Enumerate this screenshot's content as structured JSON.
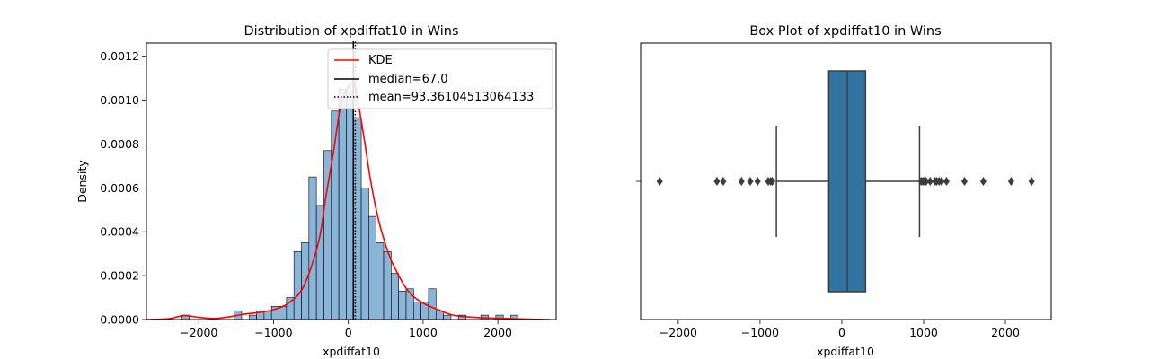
{
  "chart_data": [
    {
      "type": "histogram",
      "title": "Distribution of xpdiffat10 in Wins",
      "xlabel": "xpdiffat10",
      "ylabel": "Density",
      "xlim": [
        -2700,
        2780
      ],
      "ylim": [
        0,
        0.00126
      ],
      "xticks": [
        -2000,
        -1000,
        0,
        1000,
        2000
      ],
      "yticks": [
        0,
        0.0002,
        0.0004,
        0.0006,
        0.0008,
        0.001,
        0.0012
      ],
      "ytick_labels": [
        "0.0000",
        "0.0002",
        "0.0004",
        "0.0006",
        "0.0008",
        "0.0010",
        "0.0012"
      ],
      "bin_edges": [
        -2227,
        -2127,
        -2027,
        -1927,
        -1827,
        -1727,
        -1627,
        -1527,
        -1427,
        -1327,
        -1227,
        -1127,
        -1027,
        -927,
        -827,
        -727,
        -627,
        -527,
        -427,
        -327,
        -227,
        -127,
        -27,
        73,
        173,
        273,
        373,
        473,
        573,
        673,
        773,
        873,
        973,
        1073,
        1173,
        1273,
        1373,
        1473,
        1573,
        1673,
        1773,
        1873,
        1973,
        2073,
        2173,
        2273,
        2373
      ],
      "bin_density": [
        2e-05,
        0,
        0,
        0,
        0,
        0,
        0,
        4e-05,
        0,
        2e-05,
        4e-05,
        4e-05,
        6e-05,
        6e-05,
        0.0001,
        0.00031,
        0.00035,
        0.00065,
        0.00052,
        0.00077,
        0.00095,
        0.00105,
        0.00104,
        0.00092,
        0.0006,
        0.00047,
        0.00035,
        0.00031,
        0.00021,
        0.00013,
        0.00014,
        8e-05,
        8e-05,
        0.00014,
        4e-05,
        2e-05,
        0,
        2e-05,
        0,
        0,
        2e-05,
        0,
        2e-05,
        0,
        2e-05,
        0
      ],
      "kde": {
        "name": "KDE",
        "x": [
          -2700,
          -2400,
          -2200,
          -2000,
          -1800,
          -1600,
          -1400,
          -1200,
          -1000,
          -800,
          -600,
          -400,
          -300,
          -200,
          -100,
          0,
          67,
          100,
          200,
          300,
          400,
          500,
          600,
          800,
          1000,
          1200,
          1400,
          1600,
          1800,
          2000,
          2200,
          2400,
          2700
        ],
        "y": [
          0,
          4e-06,
          1.8e-05,
          1e-05,
          5e-06,
          1.2e-05,
          2.4e-05,
          3.2e-05,
          4.5e-05,
          7.5e-05,
          0.00015,
          0.00035,
          0.00056,
          0.00076,
          0.00098,
          0.00106,
          0.00108,
          0.00105,
          0.00085,
          0.00063,
          0.00046,
          0.00034,
          0.00025,
          0.00013,
          7.5e-05,
          4.5e-05,
          2e-05,
          1.2e-05,
          8e-06,
          6e-06,
          4e-06,
          2e-06,
          0
        ]
      },
      "median": {
        "name": "median=67.0",
        "value": 67.0
      },
      "mean": {
        "name": "mean=93.36104513064133",
        "value": 93.36104513064133
      },
      "legend_position": "top-right",
      "colors": {
        "bars": "#8ab4d8",
        "bar_edge": "#000000",
        "kde": "#ff0000",
        "median": "#000000",
        "mean": "#000000"
      }
    },
    {
      "type": "boxplot",
      "title": "Box Plot of xpdiffat10 in Wins",
      "xlabel": "xpdiffat10",
      "xlim": [
        -2460,
        2560
      ],
      "xticks": [
        -2000,
        -1000,
        0,
        1000,
        2000
      ],
      "q1": -160,
      "median": 67,
      "q3": 290,
      "whisker_low": -800,
      "whisker_high": 950,
      "outliers": [
        -2227,
        -1527,
        -1450,
        -1227,
        -1120,
        -1030,
        -900,
        -870,
        -850,
        970,
        990,
        1010,
        1030,
        1080,
        1140,
        1160,
        1190,
        1220,
        1280,
        1500,
        1730,
        2070,
        2320
      ],
      "colors": {
        "box": "#3274a1",
        "lines": "#3d3d3d"
      }
    }
  ]
}
